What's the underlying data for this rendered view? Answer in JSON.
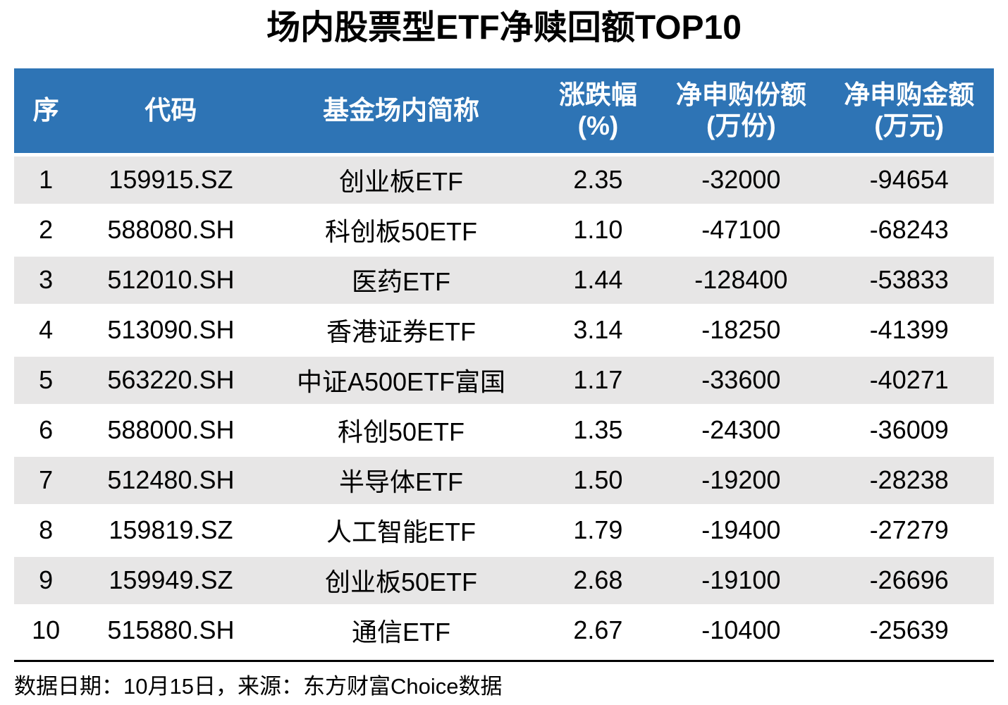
{
  "title": "场内股票型ETF净赎回额TOP10",
  "table": {
    "columns": [
      {
        "label": "序",
        "sub": ""
      },
      {
        "label": "代码",
        "sub": ""
      },
      {
        "label": "基金场内简称",
        "sub": ""
      },
      {
        "label": "涨跌幅",
        "sub": "(%)"
      },
      {
        "label": "净申购份额",
        "sub": "(万份)"
      },
      {
        "label": "净申购金额",
        "sub": "(万元)"
      }
    ],
    "rows": [
      [
        "1",
        "159915.SZ",
        "创业板ETF",
        "2.35",
        "-32000",
        "-94654"
      ],
      [
        "2",
        "588080.SH",
        "科创板50ETF",
        "1.10",
        "-47100",
        "-68243"
      ],
      [
        "3",
        "512010.SH",
        "医药ETF",
        "1.44",
        "-128400",
        "-53833"
      ],
      [
        "4",
        "513090.SH",
        "香港证券ETF",
        "3.14",
        "-18250",
        "-41399"
      ],
      [
        "5",
        "563220.SH",
        "中证A500ETF富国",
        "1.17",
        "-33600",
        "-40271"
      ],
      [
        "6",
        "588000.SH",
        "科创50ETF",
        "1.35",
        "-24300",
        "-36009"
      ],
      [
        "7",
        "512480.SH",
        "半导体ETF",
        "1.50",
        "-19200",
        "-28238"
      ],
      [
        "8",
        "159819.SZ",
        "人工智能ETF",
        "1.79",
        "-19400",
        "-27279"
      ],
      [
        "9",
        "159949.SZ",
        "创业板50ETF",
        "2.68",
        "-19100",
        "-26696"
      ],
      [
        "10",
        "515880.SH",
        "通信ETF",
        "2.67",
        "-10400",
        "-25639"
      ]
    ]
  },
  "footer": {
    "text": "数据日期：10月15日，来源：东方财富Choice数据"
  },
  "colors": {
    "header_bg": "#2E74B5",
    "header_text": "#FFFFFF",
    "stripe_bg": "#E7E6E6",
    "row_bg": "#FFFFFF",
    "text": "#000000",
    "rule": "#000000"
  },
  "chart_data": {
    "type": "table",
    "title": "场内股票型ETF净赎回额TOP10",
    "columns": [
      "序",
      "代码",
      "基金场内简称",
      "涨跌幅(%)",
      "净申购份额(万份)",
      "净申购金额(万元)"
    ],
    "rows": [
      [
        1,
        "159915.SZ",
        "创业板ETF",
        2.35,
        -32000,
        -94654
      ],
      [
        2,
        "588080.SH",
        "科创板50ETF",
        1.1,
        -47100,
        -68243
      ],
      [
        3,
        "512010.SH",
        "医药ETF",
        1.44,
        -128400,
        -53833
      ],
      [
        4,
        "513090.SH",
        "香港证券ETF",
        3.14,
        -18250,
        -41399
      ],
      [
        5,
        "563220.SH",
        "中证A500ETF富国",
        1.17,
        -33600,
        -40271
      ],
      [
        6,
        "588000.SH",
        "科创50ETF",
        1.35,
        -24300,
        -36009
      ],
      [
        7,
        "512480.SH",
        "半导体ETF",
        1.5,
        -19200,
        -28238
      ],
      [
        8,
        "159819.SZ",
        "人工智能ETF",
        1.79,
        -19400,
        -27279
      ],
      [
        9,
        "159949.SZ",
        "创业板50ETF",
        2.68,
        -19100,
        -26696
      ],
      [
        10,
        "515880.SH",
        "通信ETF",
        2.67,
        -10400,
        -25639
      ]
    ],
    "source_note": "数据日期：10月15日，来源：东方财富Choice数据"
  }
}
